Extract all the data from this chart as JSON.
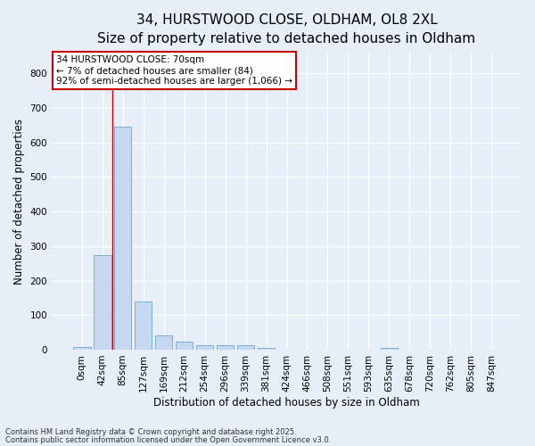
{
  "title_line1": "34, HURSTWOOD CLOSE, OLDHAM, OL8 2XL",
  "title_line2": "Size of property relative to detached houses in Oldham",
  "xlabel": "Distribution of detached houses by size in Oldham",
  "ylabel": "Number of detached properties",
  "footnote_line1": "Contains HM Land Registry data © Crown copyright and database right 2025.",
  "footnote_line2": "Contains public sector information licensed under the Open Government Licence v3.0.",
  "bar_labels": [
    "0sqm",
    "42sqm",
    "85sqm",
    "127sqm",
    "169sqm",
    "212sqm",
    "254sqm",
    "296sqm",
    "339sqm",
    "381sqm",
    "424sqm",
    "466sqm",
    "508sqm",
    "551sqm",
    "593sqm",
    "635sqm",
    "678sqm",
    "720sqm",
    "762sqm",
    "805sqm",
    "847sqm"
  ],
  "bar_values": [
    8,
    275,
    645,
    140,
    40,
    22,
    14,
    13,
    12,
    5,
    0,
    0,
    0,
    0,
    0,
    5,
    0,
    0,
    0,
    0,
    0
  ],
  "bar_color": "#c5d8f0",
  "bar_edge_color": "#7bafd4",
  "ylim": [
    0,
    860
  ],
  "yticks": [
    0,
    100,
    200,
    300,
    400,
    500,
    600,
    700,
    800
  ],
  "property_line_x": 1.5,
  "property_line_color": "#cc0000",
  "annotation_text": "34 HURSTWOOD CLOSE: 70sqm\n← 7% of detached houses are smaller (84)\n92% of semi-detached houses are larger (1,066) →",
  "annotation_box_color": "#ffffff",
  "annotation_box_edge_color": "#cc0000",
  "bg_color": "#e8eef7",
  "plot_bg_color": "#e8eef7",
  "grid_color": "#ffffff",
  "title_fontsize": 11,
  "subtitle_fontsize": 10,
  "axis_label_fontsize": 8.5,
  "tick_fontsize": 7.5,
  "annotation_fontsize": 7.5,
  "footnote_fontsize": 6.0
}
